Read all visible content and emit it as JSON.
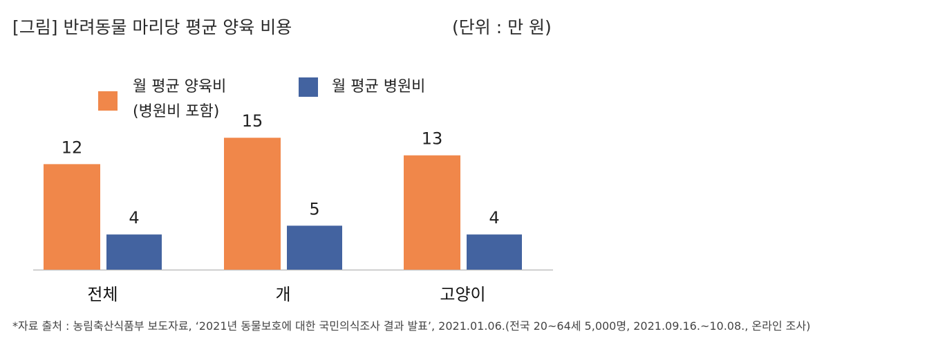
{
  "header": {
    "title": "[그림] 반려동물 마리당 평균 양육 비용",
    "unit": "(단위 : 만 원)"
  },
  "legend": {
    "item1_line1": "월 평균 양육비",
    "item1_line2": "(병원비 포함)",
    "item2": "월 평균 병원비"
  },
  "footnote": "*자료 출처 : 농림축산식품부 보도자료, ‘2021년 동물보호에 대한 국민의식조사 결과 발표’, 2021.01.06.(전국 20~64세 5,000명, 2021.09.16.~10.08., 온라인 조사)",
  "chart_data": {
    "type": "bar",
    "categories": [
      "전체",
      "개",
      "고양이"
    ],
    "series": [
      {
        "name": "월 평균 양육비 (병원비 포함)",
        "values": [
          12,
          15,
          13
        ],
        "color": "#F0874A"
      },
      {
        "name": "월 평균 병원비",
        "values": [
          4,
          5,
          4
        ],
        "color": "#4363A0"
      }
    ],
    "title": "[그림] 반려동물 마리당 평균 양육 비용",
    "unit": "(단위 : 만 원)",
    "ylim": [
      0,
      17.3
    ],
    "grid": false,
    "legend_position": "top-left"
  }
}
